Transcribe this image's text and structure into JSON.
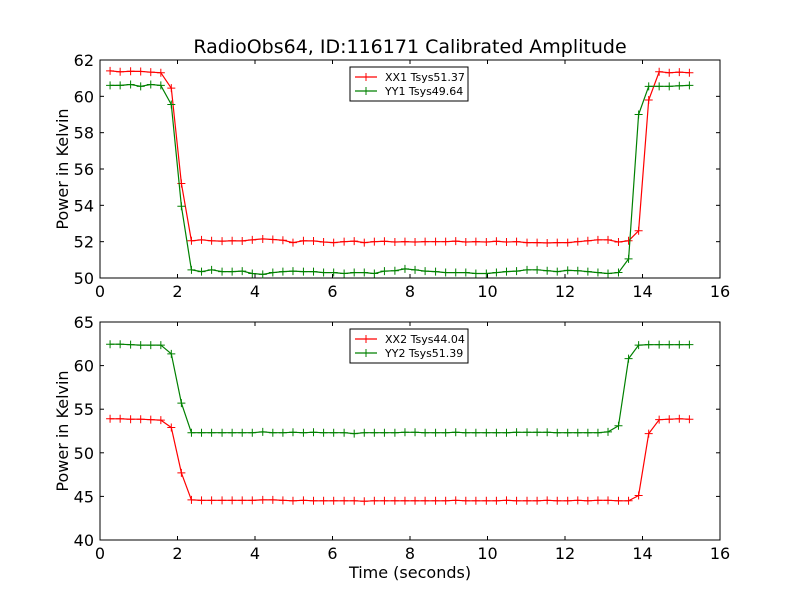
{
  "chart_data": {
    "title": "RadioObs64, ID:116171 Calibrated Amplitude",
    "xlabel": "Time (seconds)",
    "panels": [
      {
        "type": "line",
        "ylabel": "Power in Kelvin",
        "xlim": [
          0,
          16
        ],
        "ylim": [
          50,
          62
        ],
        "xticks": [
          0,
          2,
          4,
          6,
          8,
          10,
          12,
          14,
          16
        ],
        "yticks": [
          50,
          52,
          54,
          56,
          58,
          60,
          62
        ],
        "legend_position": "upper-center",
        "x": [
          0.26,
          0.52,
          0.79,
          1.05,
          1.31,
          1.57,
          1.84,
          2.1,
          2.36,
          2.62,
          2.88,
          3.15,
          3.41,
          3.67,
          3.93,
          4.2,
          4.46,
          4.72,
          4.98,
          5.25,
          5.51,
          5.77,
          6.03,
          6.3,
          6.56,
          6.82,
          7.08,
          7.34,
          7.61,
          7.87,
          8.13,
          8.39,
          8.66,
          8.92,
          9.18,
          9.44,
          9.7,
          9.97,
          10.23,
          10.49,
          10.75,
          11.02,
          11.28,
          11.54,
          11.8,
          12.07,
          12.33,
          12.59,
          12.85,
          13.11,
          13.38,
          13.64,
          13.9,
          14.16,
          14.43,
          14.69,
          14.95,
          15.21
        ],
        "series": [
          {
            "name": "XX1 Tsys51.37",
            "color": "#ff0000",
            "values": [
              61.4,
              61.35,
              61.38,
              61.37,
              61.33,
              61.3,
              60.45,
              55.2,
              52.05,
              52.1,
              52.05,
              52.03,
              52.05,
              52.04,
              52.1,
              52.15,
              52.12,
              52.08,
              51.95,
              52.05,
              52.04,
              51.98,
              51.95,
              52.0,
              52.03,
              51.95,
              52.0,
              52.02,
              51.98,
              52.0,
              51.98,
              52.0,
              52.0,
              52.0,
              52.03,
              51.98,
              52.0,
              51.98,
              52.02,
              51.98,
              52.0,
              51.95,
              51.95,
              51.93,
              51.95,
              51.95,
              52.0,
              52.05,
              52.1,
              52.1,
              51.98,
              52.05,
              52.6,
              59.8,
              61.35,
              61.3,
              61.33,
              61.3
            ]
          },
          {
            "name": "YY1 Tsys49.64",
            "color": "#008000",
            "values": [
              60.6,
              60.6,
              60.65,
              60.55,
              60.65,
              60.6,
              59.55,
              53.95,
              50.45,
              50.35,
              50.45,
              50.35,
              50.35,
              50.38,
              50.25,
              50.2,
              50.3,
              50.35,
              50.38,
              50.35,
              50.35,
              50.3,
              50.3,
              50.25,
              50.3,
              50.3,
              50.25,
              50.38,
              50.4,
              50.5,
              50.45,
              50.38,
              50.35,
              50.3,
              50.3,
              50.3,
              50.25,
              50.25,
              50.3,
              50.35,
              50.38,
              50.45,
              50.45,
              50.4,
              50.35,
              50.42,
              50.4,
              50.35,
              50.3,
              50.25,
              50.3,
              51.05,
              59.0,
              60.55,
              60.55,
              60.55,
              60.58,
              60.6
            ]
          }
        ]
      },
      {
        "type": "line",
        "ylabel": "Power in Kelvin",
        "xlim": [
          0,
          16
        ],
        "ylim": [
          40,
          65
        ],
        "xticks": [
          0,
          2,
          4,
          6,
          8,
          10,
          12,
          14,
          16
        ],
        "yticks": [
          40,
          45,
          50,
          55,
          60,
          65
        ],
        "legend_position": "upper-center",
        "x": [
          0.26,
          0.52,
          0.79,
          1.05,
          1.31,
          1.57,
          1.84,
          2.1,
          2.36,
          2.62,
          2.88,
          3.15,
          3.41,
          3.67,
          3.93,
          4.2,
          4.46,
          4.72,
          4.98,
          5.25,
          5.51,
          5.77,
          6.03,
          6.3,
          6.56,
          6.82,
          7.08,
          7.34,
          7.61,
          7.87,
          8.13,
          8.39,
          8.66,
          8.92,
          9.18,
          9.44,
          9.7,
          9.97,
          10.23,
          10.49,
          10.75,
          11.02,
          11.28,
          11.54,
          11.8,
          12.07,
          12.33,
          12.59,
          12.85,
          13.11,
          13.38,
          13.64,
          13.9,
          14.16,
          14.43,
          14.69,
          14.95,
          15.21
        ],
        "series": [
          {
            "name": "XX2 Tsys44.04",
            "color": "#ff0000",
            "values": [
              53.9,
              53.9,
              53.85,
              53.85,
              53.8,
              53.75,
              52.9,
              47.7,
              44.6,
              44.55,
              44.55,
              44.55,
              44.55,
              44.55,
              44.55,
              44.6,
              44.6,
              44.55,
              44.5,
              44.55,
              44.5,
              44.5,
              44.5,
              44.5,
              44.5,
              44.45,
              44.5,
              44.5,
              44.5,
              44.5,
              44.5,
              44.5,
              44.5,
              44.5,
              44.55,
              44.5,
              44.5,
              44.5,
              44.5,
              44.55,
              44.5,
              44.5,
              44.5,
              44.55,
              44.5,
              44.5,
              44.55,
              44.5,
              44.55,
              44.55,
              44.5,
              44.5,
              45.1,
              52.2,
              53.8,
              53.85,
              53.9,
              53.85
            ]
          },
          {
            "name": "YY2 Tsys51.39",
            "color": "#008000",
            "values": [
              62.45,
              62.45,
              62.4,
              62.35,
              62.35,
              62.35,
              61.35,
              55.7,
              52.3,
              52.3,
              52.3,
              52.3,
              52.3,
              52.3,
              52.3,
              52.4,
              52.3,
              52.3,
              52.35,
              52.3,
              52.35,
              52.3,
              52.3,
              52.3,
              52.2,
              52.3,
              52.3,
              52.3,
              52.3,
              52.35,
              52.35,
              52.3,
              52.3,
              52.3,
              52.35,
              52.3,
              52.3,
              52.3,
              52.3,
              52.3,
              52.35,
              52.35,
              52.35,
              52.35,
              52.3,
              52.3,
              52.3,
              52.3,
              52.3,
              52.4,
              53.1,
              60.8,
              62.35,
              62.4,
              62.4,
              62.4,
              62.4,
              62.4
            ]
          }
        ]
      }
    ]
  }
}
